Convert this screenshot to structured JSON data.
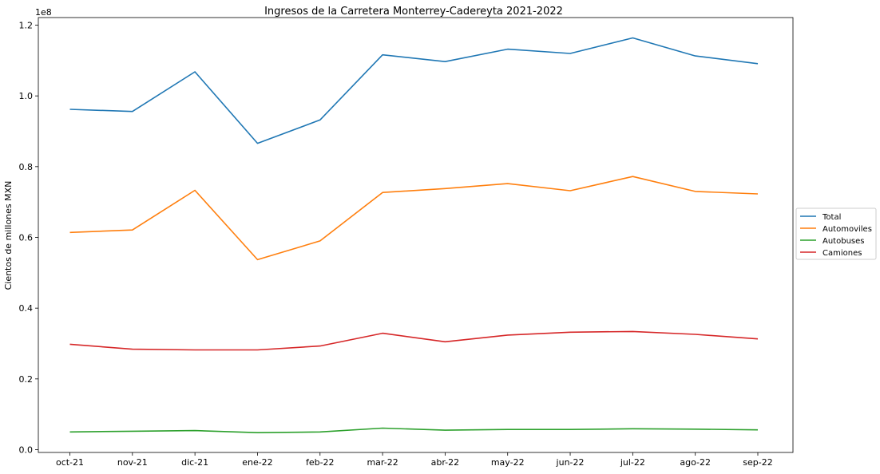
{
  "chart_data": {
    "type": "line",
    "title": "Ingresos de la Carretera Monterrey-Cadereyta 2021-2022",
    "xlabel": "",
    "ylabel": "Cientos de millones MXN",
    "offset_text": "1e8",
    "categories": [
      "oct-21",
      "nov-21",
      "dic-21",
      "ene-22",
      "feb-22",
      "mar-22",
      "abr-22",
      "may-22",
      "jun-22",
      "jul-22",
      "ago-22",
      "sep-22"
    ],
    "ylim": [
      0,
      1.2
    ],
    "yticks": [
      {
        "value": 0.0,
        "label": "0.0"
      },
      {
        "value": 0.2,
        "label": "0.2"
      },
      {
        "value": 0.4,
        "label": "0.4"
      },
      {
        "value": 0.6,
        "label": "0.6"
      },
      {
        "value": 0.8,
        "label": "0.8"
      },
      {
        "value": 1.0,
        "label": "1.0"
      },
      {
        "value": 1.2,
        "label": "1.2"
      }
    ],
    "series": [
      {
        "name": "Total",
        "color": "#1f77b4",
        "values": [
          0.962,
          0.956,
          1.068,
          0.866,
          0.932,
          1.116,
          1.097,
          1.132,
          1.12,
          1.164,
          1.113,
          1.091
        ]
      },
      {
        "name": "Automoviles",
        "color": "#ff7f0e",
        "values": [
          0.614,
          0.621,
          0.733,
          0.537,
          0.59,
          0.727,
          0.738,
          0.752,
          0.732,
          0.772,
          0.73,
          0.723
        ]
      },
      {
        "name": "Autobuses",
        "color": "#2ca02c",
        "values": [
          0.05,
          0.052,
          0.054,
          0.048,
          0.05,
          0.061,
          0.055,
          0.057,
          0.057,
          0.059,
          0.058,
          0.056
        ]
      },
      {
        "name": "Camiones",
        "color": "#d62728",
        "values": [
          0.298,
          0.284,
          0.282,
          0.282,
          0.293,
          0.329,
          0.305,
          0.324,
          0.332,
          0.334,
          0.326,
          0.313
        ]
      }
    ],
    "grid": false,
    "legend_position": "right"
  }
}
